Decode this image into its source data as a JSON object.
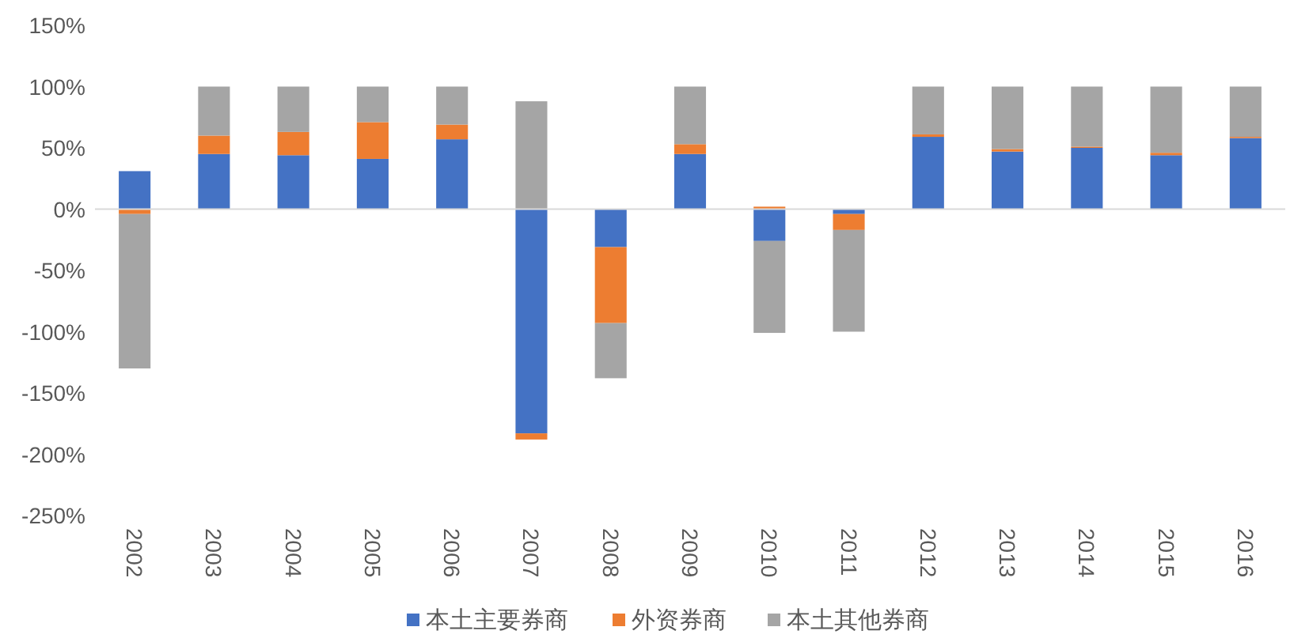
{
  "chart_data": {
    "type": "bar",
    "stacked": true,
    "legend": "bottom",
    "categories": [
      "2002",
      "2003",
      "2004",
      "2005",
      "2006",
      "2007",
      "2008",
      "2009",
      "2010",
      "2011",
      "2012",
      "2013",
      "2014",
      "2015",
      "2016"
    ],
    "ylim": [
      -250,
      150
    ],
    "yticks": [
      {
        "value": -250,
        "label": "-250%"
      },
      {
        "value": -200,
        "label": "-200%"
      },
      {
        "value": -150,
        "label": "-150%"
      },
      {
        "value": -100,
        "label": "-100%"
      },
      {
        "value": -50,
        "label": "-50%"
      },
      {
        "value": 0,
        "label": "0%"
      },
      {
        "value": 50,
        "label": "50%"
      },
      {
        "value": 100,
        "label": "100%"
      },
      {
        "value": 150,
        "label": "150%"
      }
    ],
    "series": [
      {
        "name": "本土主要券商",
        "color": "#4472c4",
        "values": [
          31,
          45,
          44,
          41,
          57,
          -183,
          -31,
          45,
          -26,
          -4,
          59,
          47,
          50,
          44,
          58
        ]
      },
      {
        "name": "外资券商",
        "color": "#ed7d31",
        "values": [
          -4,
          15,
          19,
          30,
          12,
          -5,
          -62,
          8,
          2,
          -13,
          2,
          2,
          1,
          2,
          1
        ]
      },
      {
        "name": "本土其他券商",
        "color": "#a5a5a5",
        "values": [
          -126,
          40,
          37,
          29,
          31,
          88,
          -45,
          47,
          -75,
          -83,
          39,
          51,
          49,
          54,
          41
        ]
      }
    ]
  }
}
